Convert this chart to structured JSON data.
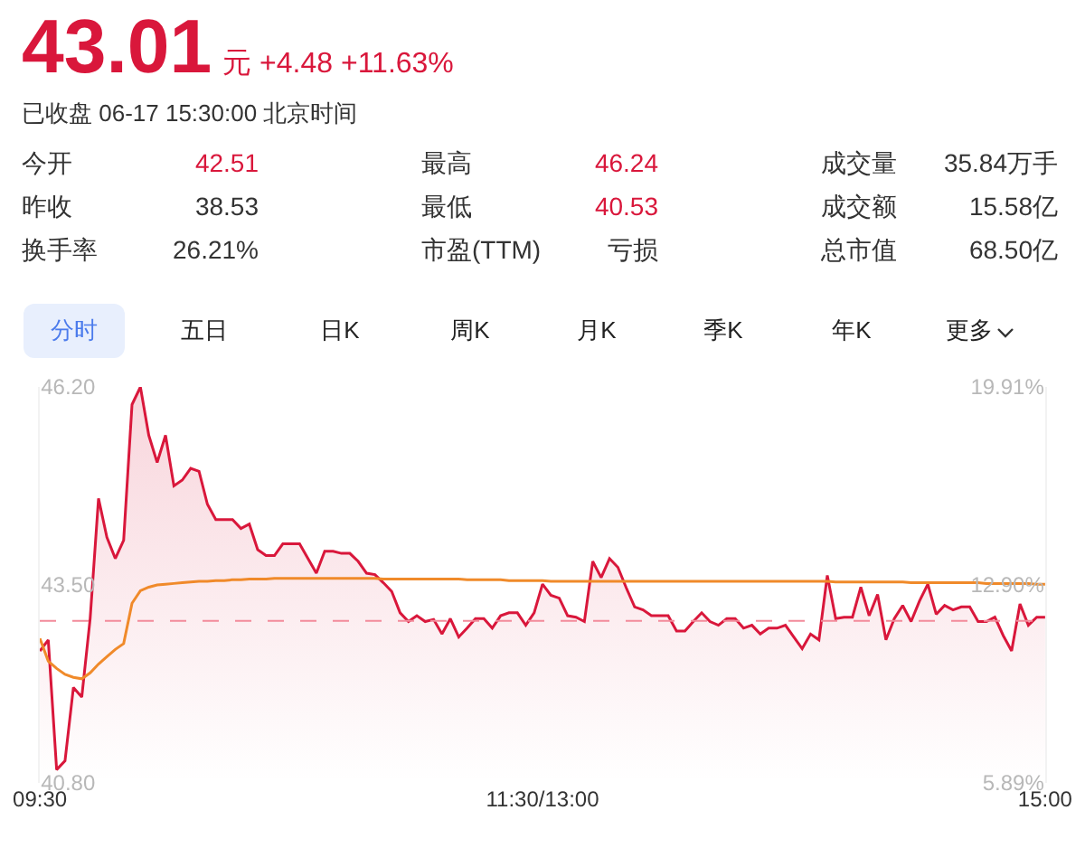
{
  "chart_data": {
    "type": "line",
    "title": "43.01",
    "subtitle": "元 +4.48 +11.63%",
    "annotations": [
      "已收盘 06-17 15:30:00 北京时间",
      "今开",
      "42.51",
      "最高",
      "46.24",
      "成交量",
      "35.84万手",
      "昨收",
      "38.53",
      "最低",
      "40.53",
      "成交额",
      "15.58亿",
      "换手率",
      "26.21%",
      "市盈(TTM)",
      "亏损",
      "总市值",
      "68.50亿",
      "分时",
      "五日",
      "日K",
      "周K",
      "月K",
      "季K",
      "年K",
      "更多"
    ],
    "categories": [
      "09:30",
      null,
      null,
      null,
      null,
      null,
      null,
      null,
      null,
      null,
      null,
      null,
      null,
      null,
      null,
      null,
      null,
      null,
      null,
      null,
      null,
      null,
      null,
      null,
      null,
      null,
      null,
      null,
      null,
      null,
      null,
      null,
      null,
      null,
      null,
      null,
      null,
      null,
      null,
      null,
      null,
      null,
      null,
      null,
      null,
      null,
      null,
      null,
      null,
      null,
      null,
      null,
      null,
      null,
      null,
      null,
      null,
      null,
      null,
      null,
      "11:30/13:00",
      null,
      null,
      null,
      null,
      null,
      null,
      null,
      null,
      null,
      null,
      null,
      null,
      null,
      null,
      null,
      null,
      null,
      null,
      null,
      null,
      null,
      null,
      null,
      null,
      null,
      null,
      null,
      null,
      null,
      null,
      null,
      null,
      null,
      null,
      null,
      null,
      null,
      null,
      null,
      null,
      null,
      null,
      null,
      null,
      null,
      null,
      null,
      null,
      null,
      null,
      null,
      null,
      null,
      null,
      null,
      null,
      null,
      null,
      null,
      "15:00"
    ],
    "ylim": [
      40.8,
      46.2
    ],
    "yticks": [
      {
        "value": 40.8,
        "label": "40.80"
      },
      {
        "value": 43.5,
        "label": "43.50"
      },
      {
        "value": 46.2,
        "label": "46.20"
      }
    ],
    "y2lim": [
      5.89,
      19.91
    ],
    "y2ticks": [
      {
        "value": 5.89,
        "label": "5.89%"
      },
      {
        "value": 12.9,
        "label": "12.90%"
      },
      {
        "value": 19.91,
        "label": "19.91%"
      }
    ],
    "ref_lines": [
      {
        "axis": "y",
        "value": 43.01,
        "color": "#f28b9b",
        "line_style": "dashed"
      }
    ],
    "grid": false,
    "marker": "none",
    "line_style": "solid",
    "series": [
      {
        "type": "area",
        "color": "#d9173b",
        "values": [
          42.6,
          42.75,
          40.98,
          41.1,
          42.1,
          41.97,
          43.04,
          44.68,
          44.15,
          43.86,
          44.11,
          45.96,
          46.2,
          45.54,
          45.17,
          45.54,
          44.85,
          44.93,
          45.09,
          45.05,
          44.6,
          44.39,
          44.39,
          44.39,
          44.27,
          44.33,
          43.98,
          43.9,
          43.9,
          44.06,
          44.06,
          44.06,
          43.86,
          43.66,
          43.96,
          43.96,
          43.93,
          43.93,
          43.82,
          43.66,
          43.64,
          43.53,
          43.41,
          43.12,
          43.0,
          43.08,
          43.0,
          43.03,
          42.83,
          43.04,
          42.79,
          42.91,
          43.04,
          43.04,
          42.91,
          43.08,
          43.12,
          43.12,
          42.95,
          43.12,
          43.51,
          43.36,
          43.32,
          43.08,
          43.06,
          43.0,
          43.82,
          43.6,
          43.86,
          43.74,
          43.46,
          43.2,
          43.16,
          43.08,
          43.08,
          43.08,
          42.87,
          42.87,
          43.0,
          43.12,
          43.0,
          42.95,
          43.04,
          43.04,
          42.91,
          42.95,
          42.83,
          42.91,
          42.91,
          42.95,
          42.79,
          42.63,
          42.83,
          42.75,
          43.63,
          43.04,
          43.06,
          43.06,
          43.47,
          43.08,
          43.37,
          42.75,
          43.04,
          43.22,
          43.0,
          43.28,
          43.51,
          43.1,
          43.22,
          43.16,
          43.2,
          43.2,
          43.0,
          43.0,
          43.06,
          42.81,
          42.6,
          43.24,
          42.95,
          43.06,
          43.06
        ]
      },
      {
        "type": "line",
        "color": "#f08a2a",
        "values": [
          42.77,
          42.46,
          42.36,
          42.28,
          42.24,
          42.22,
          42.3,
          42.42,
          42.52,
          42.62,
          42.7,
          43.25,
          43.42,
          43.47,
          43.5,
          43.51,
          43.52,
          43.53,
          43.54,
          43.55,
          43.55,
          43.56,
          43.56,
          43.57,
          43.57,
          43.58,
          43.58,
          43.58,
          43.59,
          43.59,
          43.59,
          43.59,
          43.59,
          43.59,
          43.59,
          43.59,
          43.59,
          43.59,
          43.59,
          43.59,
          43.59,
          43.58,
          43.58,
          43.58,
          43.58,
          43.58,
          43.58,
          43.58,
          43.58,
          43.58,
          43.58,
          43.57,
          43.57,
          43.57,
          43.57,
          43.57,
          43.56,
          43.56,
          43.56,
          43.56,
          43.56,
          43.55,
          43.55,
          43.55,
          43.55,
          43.55,
          43.55,
          43.55,
          43.55,
          43.55,
          43.55,
          43.55,
          43.55,
          43.55,
          43.55,
          43.55,
          43.55,
          43.55,
          43.55,
          43.55,
          43.55,
          43.55,
          43.55,
          43.55,
          43.55,
          43.55,
          43.55,
          43.55,
          43.55,
          43.55,
          43.55,
          43.55,
          43.55,
          43.55,
          43.55,
          43.54,
          43.54,
          43.54,
          43.54,
          43.54,
          43.54,
          43.54,
          43.54,
          43.54,
          43.53,
          43.53,
          43.53,
          43.53,
          43.53,
          43.53,
          43.53,
          43.53,
          43.53,
          43.52,
          43.52,
          43.52,
          43.52,
          43.52,
          43.52,
          43.51,
          43.51
        ]
      }
    ]
  }
}
